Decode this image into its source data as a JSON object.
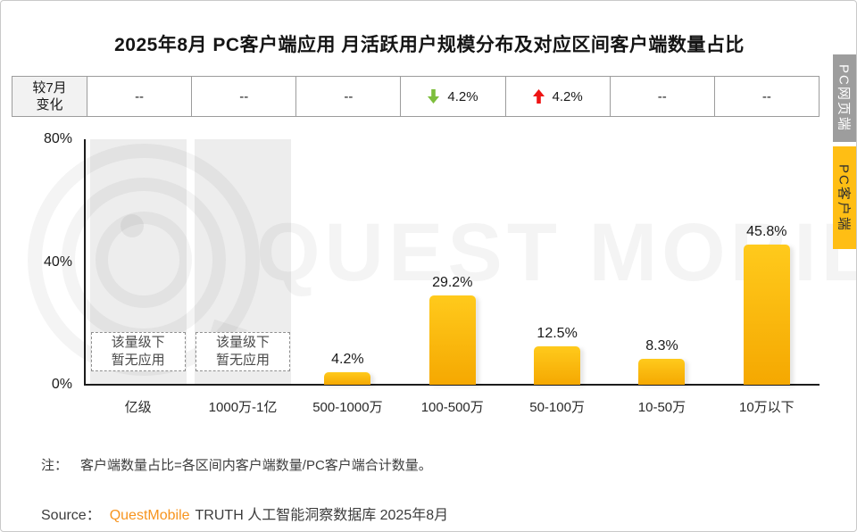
{
  "page": {
    "title": "2025年8月 PC客户端应用 月活跃用户规模分布及对应区间客户端数量占比",
    "note_prefix": "注：",
    "note_text": "客户端数量占比=各区间内客户端数量/PC客户端合计数量。",
    "source_prefix": "Source：",
    "source_brand": "QuestMobile",
    "source_suffix": "TRUTH 人工智能洞察数据库 2025年8月"
  },
  "change_row": {
    "header": "较7月变化",
    "header_line1": "较7月",
    "header_line2": "变化",
    "cells": [
      {
        "type": "dash",
        "text": "--"
      },
      {
        "type": "dash",
        "text": "--"
      },
      {
        "type": "dash",
        "text": "--"
      },
      {
        "type": "down",
        "text": "4.2%"
      },
      {
        "type": "up",
        "text": "4.2%"
      },
      {
        "type": "dash",
        "text": "--"
      },
      {
        "type": "dash",
        "text": "--"
      }
    ]
  },
  "side_tabs": [
    {
      "id": "pc-web",
      "label": "PC网页端",
      "active": false
    },
    {
      "id": "pc-client",
      "label": "PC客户端",
      "active": true
    }
  ],
  "watermark_text": "QUEST MOBILE",
  "colors": {
    "bar_top": "#FFCA1C",
    "bar_bottom": "#F5A801",
    "gray_bar": "#EDEDED",
    "up_red": "#EE1414",
    "down_green": "#7DBE3C",
    "tab_gray": "#9D9D9D",
    "tab_orange": "#FFBE14",
    "brand_orange": "#F7941E"
  },
  "chart_data": {
    "type": "bar",
    "title": "2025年8月 PC客户端应用 月活跃用户规模分布及对应区间客户端数量占比",
    "categories": [
      "亿级",
      "1000万-1亿",
      "500-1000万",
      "100-500万",
      "50-100万",
      "10-50万",
      "10万以下"
    ],
    "values": [
      null,
      null,
      4.2,
      29.2,
      12.5,
      8.3,
      45.8
    ],
    "value_labels": [
      "",
      "",
      "4.2%",
      "29.2%",
      "12.5%",
      "8.3%",
      "45.8%"
    ],
    "no_data_lines": [
      "该量级下",
      "暂无应用"
    ],
    "change_vs_july": [
      "--",
      "--",
      "--",
      "-4.2%",
      "+4.2%",
      "--",
      "--"
    ],
    "xlabel": "",
    "ylabel": "",
    "unit": "%",
    "ylim": [
      0,
      80
    ],
    "yticks": [
      {
        "value": 0,
        "label": "0%"
      },
      {
        "value": 40,
        "label": "40%"
      },
      {
        "value": 80,
        "label": "80%"
      }
    ],
    "grid": false,
    "legend": null
  }
}
